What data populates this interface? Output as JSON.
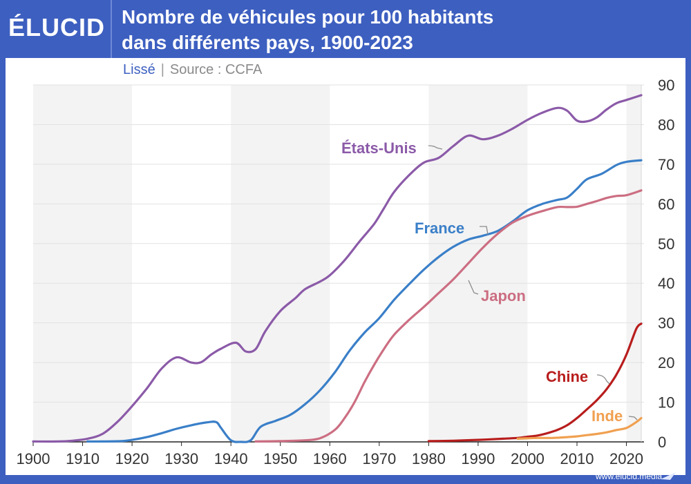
{
  "header": {
    "logo_text": "ÉLUCID",
    "title_line1": "Nombre de véhicules pour 100 habitants",
    "title_line2": "dans différents pays, 1900-2023",
    "subtitle_smoothed": "Lissé",
    "subtitle_sep": "|",
    "subtitle_source": "Source : CCFA"
  },
  "footer": {
    "url": "www.elucid.media"
  },
  "colors": {
    "background": "#3d5fc0",
    "usa": "#8b5aa8",
    "france": "#3a7fc8",
    "japon": "#cc6e82",
    "chine": "#b81d1d",
    "inde": "#f0a050",
    "band": "#f3f3f3"
  },
  "chart_data": {
    "type": "line",
    "title": "Nombre de véhicules pour 100 habitants dans différents pays, 1900-2023",
    "xlim": [
      1900,
      2023
    ],
    "ylim": [
      0,
      90
    ],
    "x_ticks": [
      1900,
      1910,
      1920,
      1930,
      1940,
      1950,
      1960,
      1970,
      1980,
      1990,
      2000,
      2010,
      2020
    ],
    "y_ticks": [
      0,
      10,
      20,
      30,
      40,
      50,
      60,
      70,
      80,
      90
    ],
    "shaded_decades": [
      [
        1900,
        1920
      ],
      [
        1940,
        1960
      ],
      [
        1980,
        2000
      ],
      [
        2020,
        2023
      ]
    ],
    "series": [
      {
        "name": "États-Unis",
        "key": "usa",
        "label": "États-Unis",
        "points": [
          [
            1900,
            0.1
          ],
          [
            1905,
            0.1
          ],
          [
            1908,
            0.3
          ],
          [
            1911,
            0.8
          ],
          [
            1914,
            2
          ],
          [
            1917,
            5
          ],
          [
            1920,
            9
          ],
          [
            1923,
            13.5
          ],
          [
            1926,
            18.5
          ],
          [
            1929,
            21.3
          ],
          [
            1932,
            20
          ],
          [
            1934,
            20.1
          ],
          [
            1936,
            22
          ],
          [
            1938,
            23.5
          ],
          [
            1941,
            25
          ],
          [
            1943,
            22.8
          ],
          [
            1945,
            23.4
          ],
          [
            1947,
            28
          ],
          [
            1950,
            33
          ],
          [
            1953,
            36.2
          ],
          [
            1955,
            38.5
          ],
          [
            1958,
            40.4
          ],
          [
            1960,
            42
          ],
          [
            1963,
            45.8
          ],
          [
            1966,
            50.5
          ],
          [
            1969,
            55
          ],
          [
            1971,
            59
          ],
          [
            1973,
            63
          ],
          [
            1976,
            67.2
          ],
          [
            1979,
            70.4
          ],
          [
            1982,
            71.6
          ],
          [
            1985,
            74.6
          ],
          [
            1988,
            77.2
          ],
          [
            1991,
            76.3
          ],
          [
            1994,
            77.2
          ],
          [
            1997,
            79
          ],
          [
            2000,
            81.2
          ],
          [
            2003,
            83
          ],
          [
            2006,
            84.2
          ],
          [
            2008,
            83.5
          ],
          [
            2010,
            81
          ],
          [
            2012,
            80.8
          ],
          [
            2014,
            81.8
          ],
          [
            2016,
            83.8
          ],
          [
            2018,
            85.4
          ],
          [
            2020,
            86.2
          ],
          [
            2023,
            87.4
          ]
        ]
      },
      {
        "name": "France",
        "key": "france",
        "label": "France",
        "points": [
          [
            1911,
            0.1
          ],
          [
            1914,
            0.1
          ],
          [
            1918,
            0.2
          ],
          [
            1920,
            0.5
          ],
          [
            1923,
            1.2
          ],
          [
            1926,
            2.2
          ],
          [
            1929,
            3.3
          ],
          [
            1932,
            4.2
          ],
          [
            1935,
            4.9
          ],
          [
            1937,
            5
          ],
          [
            1938,
            3.5
          ],
          [
            1940,
            0.4
          ],
          [
            1942,
            0
          ],
          [
            1944,
            0.4
          ],
          [
            1946,
            3.8
          ],
          [
            1949,
            5.3
          ],
          [
            1952,
            6.8
          ],
          [
            1955,
            9.5
          ],
          [
            1958,
            13
          ],
          [
            1961,
            17.5
          ],
          [
            1964,
            23
          ],
          [
            1967,
            27.5
          ],
          [
            1970,
            31.2
          ],
          [
            1973,
            35.8
          ],
          [
            1976,
            39.7
          ],
          [
            1979,
            43.4
          ],
          [
            1982,
            46.6
          ],
          [
            1985,
            49.2
          ],
          [
            1988,
            51
          ],
          [
            1991,
            52
          ],
          [
            1994,
            53.2
          ],
          [
            1997,
            55.6
          ],
          [
            2000,
            58.4
          ],
          [
            2003,
            60
          ],
          [
            2006,
            61
          ],
          [
            2008,
            61.6
          ],
          [
            2010,
            63.8
          ],
          [
            2012,
            66.2
          ],
          [
            2015,
            67.6
          ],
          [
            2018,
            69.8
          ],
          [
            2020,
            70.6
          ],
          [
            2023,
            71
          ]
        ]
      },
      {
        "name": "Japon",
        "key": "japon",
        "label": "Japon",
        "points": [
          [
            1945,
            0.1
          ],
          [
            1950,
            0.2
          ],
          [
            1955,
            0.4
          ],
          [
            1958,
            0.9
          ],
          [
            1961,
            3
          ],
          [
            1963,
            6
          ],
          [
            1965,
            10
          ],
          [
            1967,
            15
          ],
          [
            1969,
            19.5
          ],
          [
            1971,
            23.5
          ],
          [
            1973,
            27
          ],
          [
            1976,
            30.7
          ],
          [
            1979,
            34
          ],
          [
            1982,
            37.5
          ],
          [
            1985,
            41
          ],
          [
            1988,
            45
          ],
          [
            1991,
            49
          ],
          [
            1994,
            52.5
          ],
          [
            1997,
            55.3
          ],
          [
            2000,
            57
          ],
          [
            2003,
            58.2
          ],
          [
            2006,
            59.2
          ],
          [
            2008,
            59.2
          ],
          [
            2010,
            59.3
          ],
          [
            2012,
            60
          ],
          [
            2014,
            60.7
          ],
          [
            2016,
            61.5
          ],
          [
            2018,
            62
          ],
          [
            2020,
            62.2
          ],
          [
            2023,
            63.4
          ]
        ]
      },
      {
        "name": "Chine",
        "key": "chine",
        "label": "Chine",
        "points": [
          [
            1980,
            0.2
          ],
          [
            1985,
            0.3
          ],
          [
            1990,
            0.5
          ],
          [
            1995,
            0.8
          ],
          [
            1998,
            1
          ],
          [
            2000,
            1.3
          ],
          [
            2002,
            1.6
          ],
          [
            2004,
            2.2
          ],
          [
            2006,
            3
          ],
          [
            2008,
            4.2
          ],
          [
            2010,
            6
          ],
          [
            2012,
            8.2
          ],
          [
            2014,
            10.5
          ],
          [
            2016,
            13.3
          ],
          [
            2018,
            17
          ],
          [
            2020,
            22
          ],
          [
            2022,
            28.5
          ],
          [
            2023,
            29.8
          ]
        ]
      },
      {
        "name": "Inde",
        "key": "inde",
        "label": "Inde",
        "points": [
          [
            1998,
            0.8
          ],
          [
            2000,
            0.9
          ],
          [
            2002,
            1
          ],
          [
            2005,
            1
          ],
          [
            2008,
            1.2
          ],
          [
            2010,
            1.4
          ],
          [
            2012,
            1.7
          ],
          [
            2014,
            2
          ],
          [
            2016,
            2.4
          ],
          [
            2018,
            3
          ],
          [
            2020,
            3.5
          ],
          [
            2022,
            5
          ],
          [
            2023,
            6
          ]
        ]
      }
    ]
  }
}
